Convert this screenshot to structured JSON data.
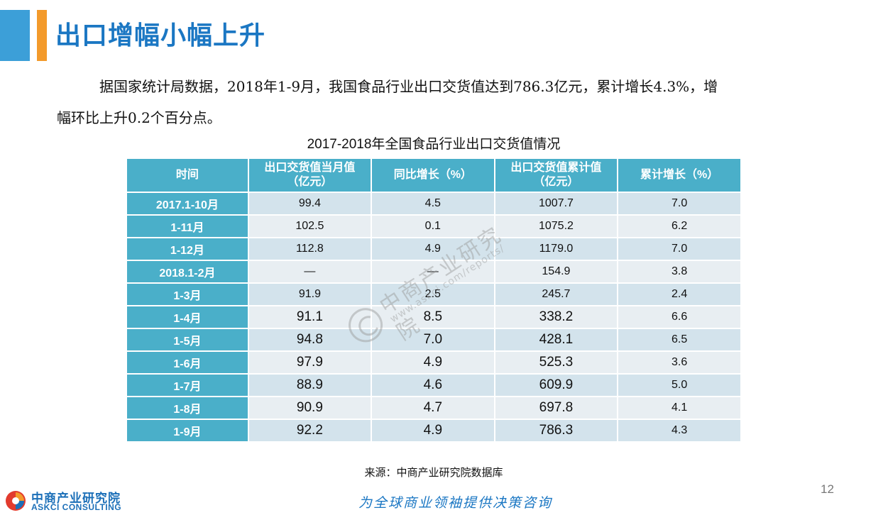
{
  "header": {
    "title": "出口增幅小幅上升"
  },
  "intro": {
    "line1": "据国家统计局数据，2018年1-9月，我国食品行业出口交货值达到786.3亿元，累计增长4.3%，增",
    "line2": "幅环比上升0.2个百分点。"
  },
  "table": {
    "title": "2017-2018年全国食品行业出口交货值情况",
    "headers": {
      "h0": "时间",
      "h1a": "出口交货值当月值",
      "h1b": "（亿元）",
      "h2": "同比增长（%）",
      "h3a": "出口交货值累计值",
      "h3b": "（亿元）",
      "h4": "累计增长（%）"
    },
    "rows": [
      {
        "period": "2017.1-10月",
        "monthly": "99.4",
        "yoy": "4.5",
        "cumulative": "1007.7",
        "cum_growth": "7.0"
      },
      {
        "period": "1-11月",
        "monthly": "102.5",
        "yoy": "0.1",
        "cumulative": "1075.2",
        "cum_growth": "6.2"
      },
      {
        "period": "1-12月",
        "monthly": "112.8",
        "yoy": "4.9",
        "cumulative": "1179.0",
        "cum_growth": "7.0"
      },
      {
        "period": "2018.1-2月",
        "monthly": "—",
        "yoy": "—",
        "cumulative": "154.9",
        "cum_growth": "3.8"
      },
      {
        "period": "1-3月",
        "monthly": "91.9",
        "yoy": "2.5",
        "cumulative": "245.7",
        "cum_growth": "2.4"
      },
      {
        "period": "1-4月",
        "monthly": "91.1",
        "yoy": "8.5",
        "cumulative": "338.2",
        "cum_growth": "6.6"
      },
      {
        "period": "1-5月",
        "monthly": "94.8",
        "yoy": "7.0",
        "cumulative": "428.1",
        "cum_growth": "6.5"
      },
      {
        "period": "1-6月",
        "monthly": "97.9",
        "yoy": "4.9",
        "cumulative": "525.3",
        "cum_growth": "3.6"
      },
      {
        "period": "1-7月",
        "monthly": "88.9",
        "yoy": "4.6",
        "cumulative": "609.9",
        "cum_growth": "5.0"
      },
      {
        "period": "1-8月",
        "monthly": "90.9",
        "yoy": "4.7",
        "cumulative": "697.8",
        "cum_growth": "4.1"
      },
      {
        "period": "1-9月",
        "monthly": "92.2",
        "yoy": "4.9",
        "cumulative": "786.3",
        "cum_growth": "4.3"
      }
    ],
    "source": "来源：中商产业研究院数据库"
  },
  "watermark": {
    "cn": "中商产业研究院",
    "url": "www.askci.com/reports/"
  },
  "footer": {
    "page_number": "12",
    "logo_cn": "中商产业研究院",
    "logo_en": "ASKCI CONSULTING",
    "slogan": "为全球商业领袖提供决策咨询"
  },
  "colors": {
    "accent_blue": "#3c9fd8",
    "accent_orange": "#f39a2b",
    "title_blue": "#1b77c3",
    "header_teal": "#4aafc9"
  }
}
